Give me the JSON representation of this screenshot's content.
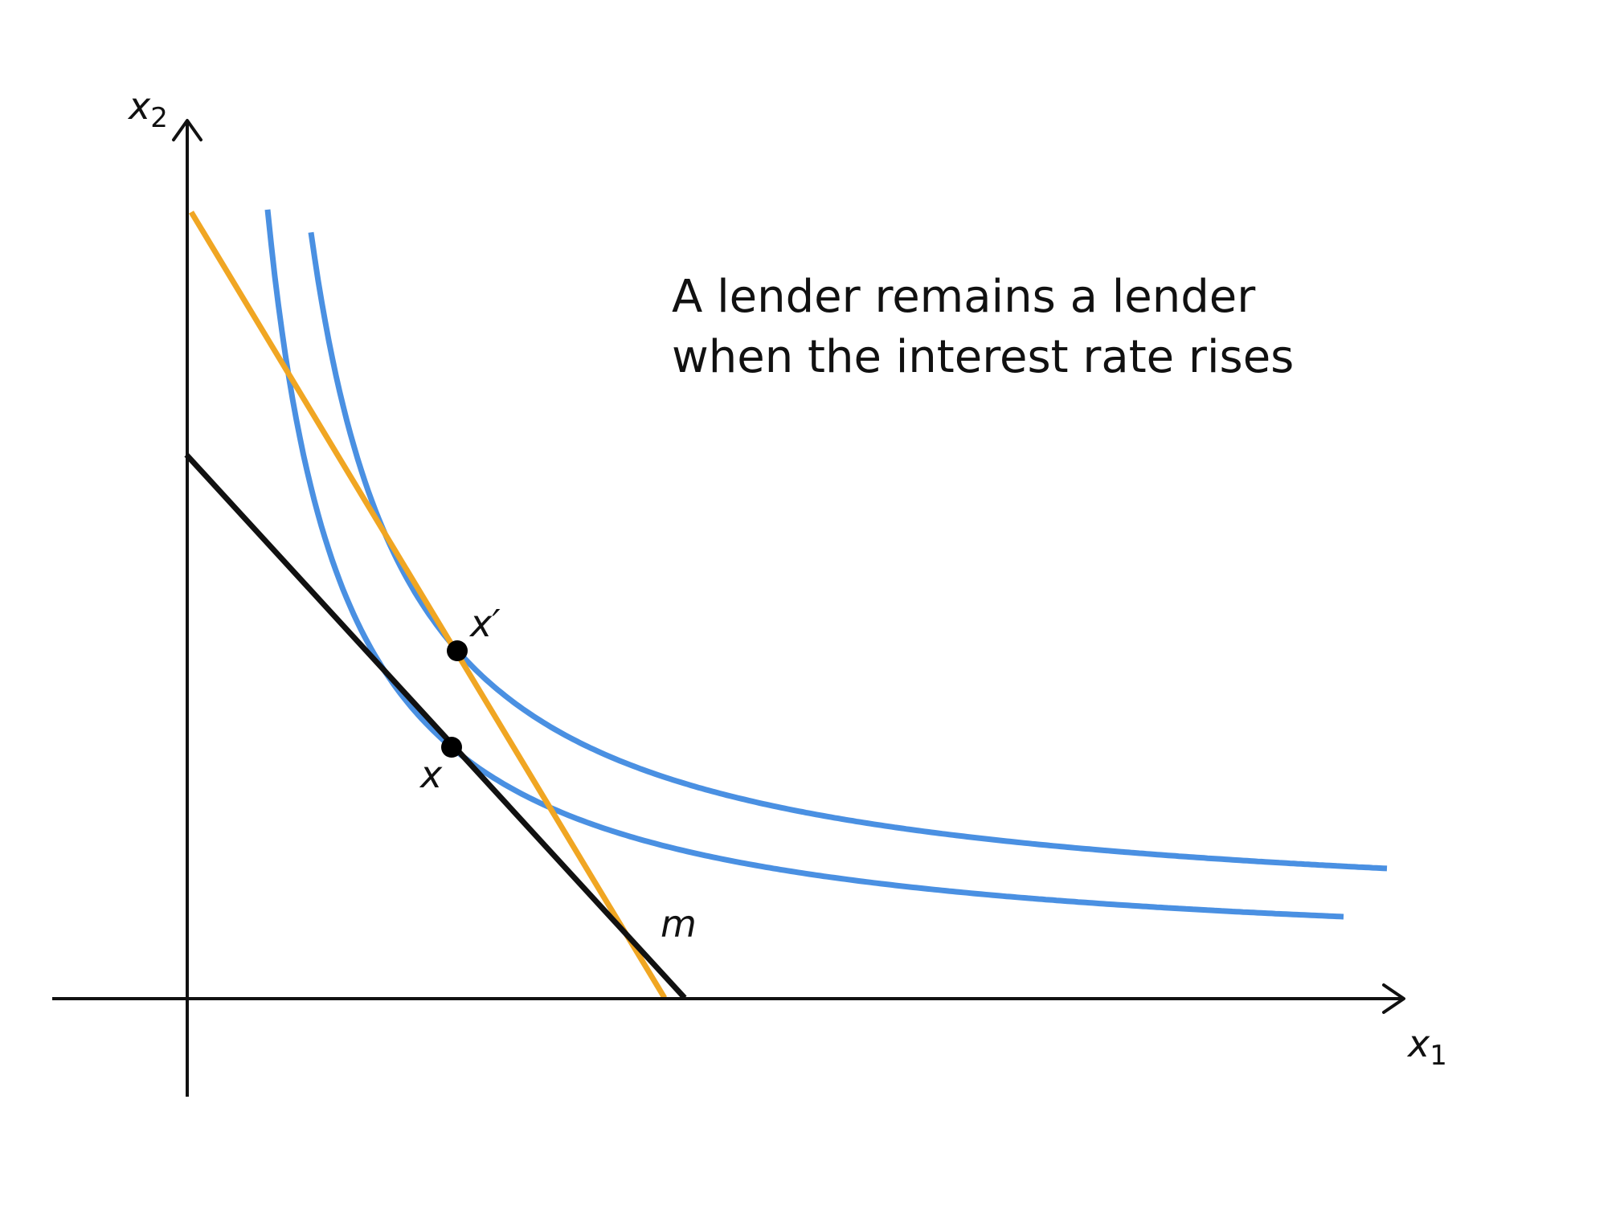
{
  "caption": {
    "line1": "A lender remains a lender",
    "line2": "when the interest rate rises"
  },
  "axes": {
    "x_label": "x",
    "x_subscript": "1",
    "y_label": "x",
    "y_subscript": "2"
  },
  "points": {
    "original": "x",
    "new": "x′"
  },
  "endowment_label": "m",
  "colors": {
    "axes": "#111111",
    "original_budget_line": "#111111",
    "new_budget_line": "#f0a623",
    "indifference_curves": "#4a90e2",
    "points": "#000000"
  }
}
